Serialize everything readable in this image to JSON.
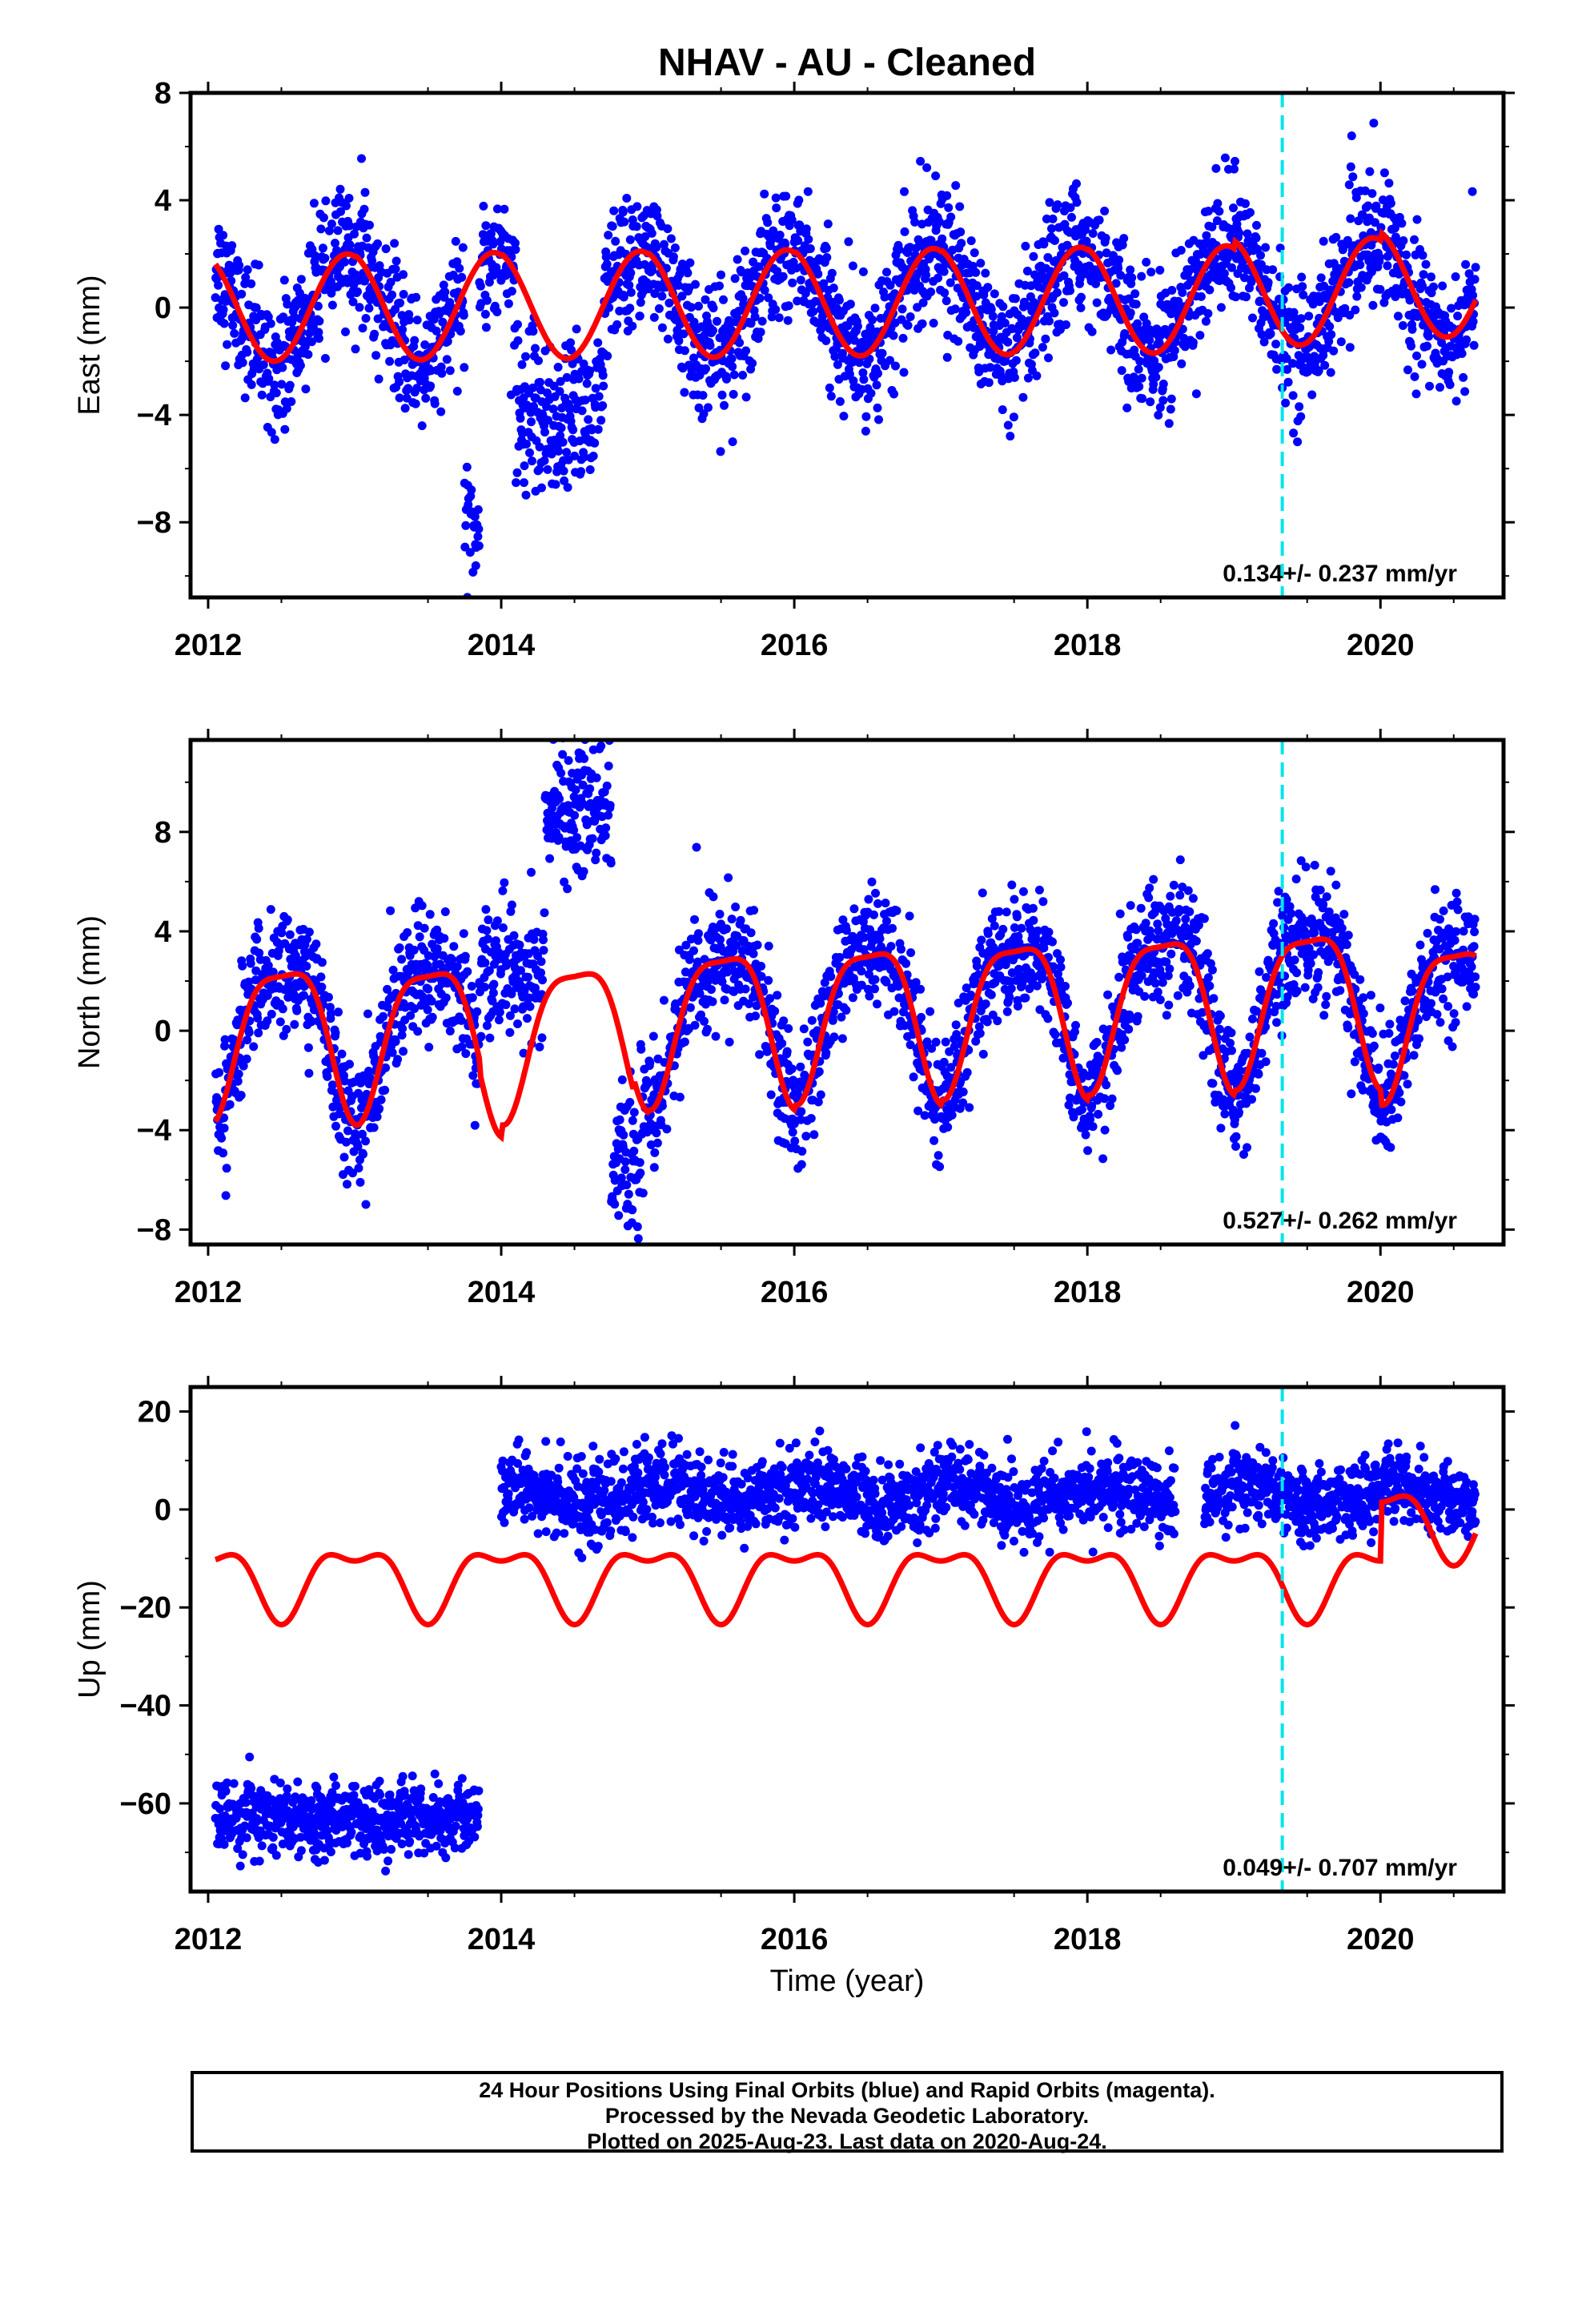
{
  "title": "NHAV  - AU - Cleaned",
  "xlabel": "Time (year)",
  "caption": {
    "line1": "24 Hour Positions Using Final Orbits (blue) and Rapid Orbits (magenta).",
    "line2": "Processed by the Nevada Geodetic Laboratory.",
    "line3": "Plotted on 2025-Aug-23. Last data on 2020-Aug-24."
  },
  "colors": {
    "data": "#0000ff",
    "model": "#ff0000",
    "break": "#00e5ee",
    "axis": "#000000"
  },
  "chart_data": [
    {
      "type": "scatter",
      "component": "East",
      "ylabel": "East (mm)",
      "xlim": [
        2011.88,
        2020.84
      ],
      "ylim": [
        -10.8,
        8.0
      ],
      "xticks": [
        2012,
        2014,
        2016,
        2018,
        2020
      ],
      "yticks": [
        -8,
        -4,
        0,
        4,
        8
      ],
      "rate": "0.134+/- 0.237 mm/yr",
      "break_x": 2019.33,
      "model": {
        "mean": [
          0.0,
          0.05,
          0.1,
          0.15,
          0.2,
          0.25,
          0.3,
          0.6,
          0.9,
          0.1
        ],
        "amp1": 2.0,
        "phase1": 0.95,
        "amp2": 0.0,
        "phase2": 0
      },
      "data_groups": [
        {
          "t_start": 2012.05,
          "t_end": 2020.65,
          "noise": 1.2,
          "offset": 0.0
        }
      ],
      "anomalies": [
        {
          "t_start": 2013.75,
          "t_end": 2013.85,
          "value": -8.0,
          "spread": 1.5
        },
        {
          "t_start": 2014.1,
          "t_end": 2014.7,
          "value": -4.0,
          "spread": 1.5
        }
      ]
    },
    {
      "type": "scatter",
      "component": "North",
      "ylabel": "North (mm)",
      "xlim": [
        2011.88,
        2020.84
      ],
      "ylim": [
        -8.6,
        11.7
      ],
      "xticks": [
        2012,
        2014,
        2016,
        2018,
        2020
      ],
      "yticks": [
        -8,
        -4,
        0,
        4,
        8
      ],
      "rate": "0.527+/- 0.262 mm/yr",
      "break_x": 2019.33,
      "model": {
        "mean": [
          0.0,
          0.0,
          0.5,
          0.6,
          0.8,
          1.0,
          1.2,
          1.4,
          0.8,
          0.8
        ],
        "amp1": 3.0,
        "phase1": 0.52,
        "amp2": 0.8,
        "phase2": 0.26
      },
      "data_groups": [
        {
          "t_start": 2012.05,
          "t_end": 2020.65,
          "noise": 1.2,
          "offset": 0.0
        }
      ],
      "anomalies": [
        {
          "t_start": 2013.85,
          "t_end": 2014.3,
          "value": 2.5,
          "spread": 1.5
        },
        {
          "t_start": 2014.3,
          "t_end": 2014.75,
          "value": 9.0,
          "spread": 1.2
        },
        {
          "t_start": 2014.75,
          "t_end": 2014.95,
          "value": -5.5,
          "spread": 1.5
        }
      ]
    },
    {
      "type": "scatter",
      "component": "Up",
      "ylabel": "Up (mm)",
      "xlim": [
        2011.88,
        2020.84
      ],
      "ylim": [
        -78,
        25
      ],
      "xticks": [
        2012,
        2014,
        2016,
        2018,
        2020
      ],
      "yticks": [
        -60,
        -40,
        -20,
        0,
        20
      ],
      "rate": "0.049+/- 0.707 mm/yr",
      "break_x": 2019.33,
      "model": {
        "mean": [
          -14,
          -14,
          -14,
          -14,
          -14,
          -14,
          -14,
          -14,
          -2,
          -2
        ],
        "amp1": 6.5,
        "phase1": 0.0,
        "amp2": 3.0,
        "phase2": 0.25
      },
      "data_groups": [
        {
          "t_start": 2012.05,
          "t_end": 2013.85,
          "noise": 3.5,
          "offset": -63.0
        },
        {
          "t_start": 2014.0,
          "t_end": 2018.6,
          "noise": 4.0,
          "offset": 3.0
        },
        {
          "t_start": 2018.8,
          "t_end": 2020.65,
          "noise": 3.5,
          "offset": 3.0
        }
      ],
      "anomalies": []
    }
  ]
}
